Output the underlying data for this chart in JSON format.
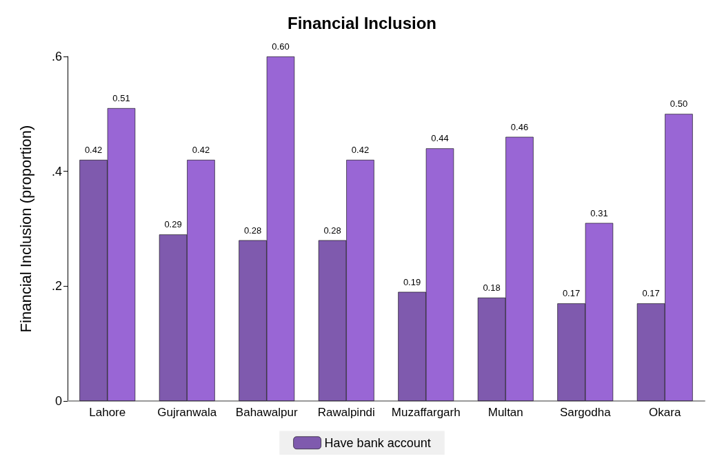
{
  "chart_data": {
    "type": "bar",
    "title": "Financial Inclusion",
    "ylabel": "Financial Inclusion (proportion)",
    "categories": [
      "Lahore",
      "Gujranwala",
      "Bahawalpur",
      "Rawalpindi",
      "Muzaffargarh",
      "Multan",
      "Sargodha",
      "Okara"
    ],
    "series": [
      {
        "name": "Have bank account",
        "color": "#7f5aae",
        "values": [
          0.42,
          0.29,
          0.28,
          0.28,
          0.19,
          0.18,
          0.17,
          0.17
        ],
        "value_labels": [
          "0.42",
          "0.29",
          "0.28",
          "0.28",
          "0.19",
          "0.18",
          "0.17",
          "0.17"
        ]
      },
      {
        "color": "#9966d5",
        "values": [
          0.51,
          0.42,
          0.6,
          0.42,
          0.44,
          0.46,
          0.31,
          0.5
        ],
        "value_labels": [
          "0.51",
          "0.42",
          "0.60",
          "0.42",
          "0.44",
          "0.46",
          "0.31",
          "0.50"
        ]
      }
    ],
    "ylim": [
      0,
      0.6
    ],
    "yticks": [
      0,
      {
        "value": 0.2,
        "label": ".2"
      },
      {
        "value": 0.4,
        "label": ".4"
      },
      {
        "value": 0.6,
        "label": ".6"
      }
    ],
    "grid": false,
    "legend": "bottom"
  }
}
